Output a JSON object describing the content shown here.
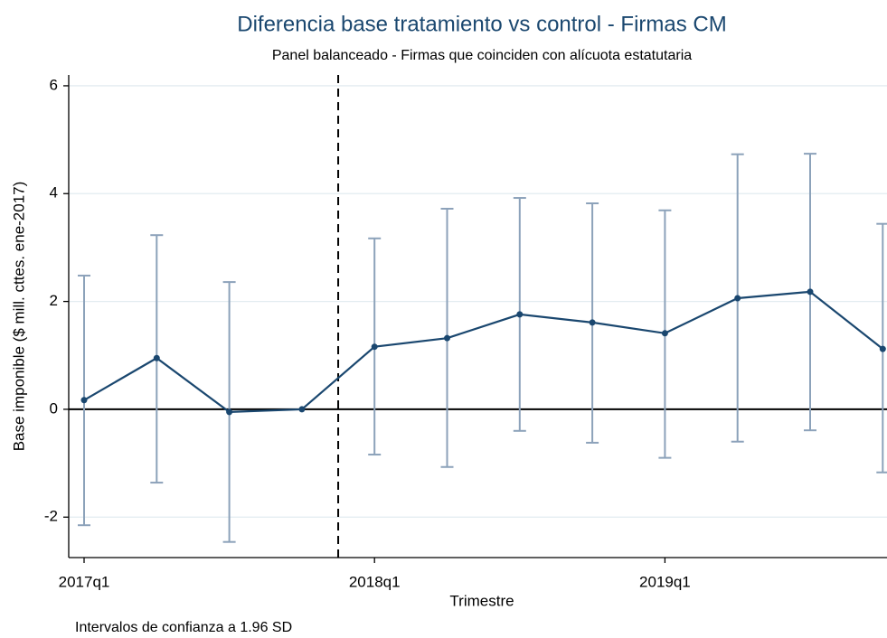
{
  "chart_data": {
    "type": "line",
    "title": "Diferencia base tratamiento vs control - Firmas CM",
    "subtitle": "Panel balanceado - Firmas que coinciden con alícuota estatutaria",
    "x_label": "Trimestre",
    "y_label": "Base imponible ($ mill. cttes. ene-2017)",
    "note": "Intervalos de confianza a 1.96 SD",
    "categories": [
      "2017q1",
      null,
      null,
      null,
      "2018q1",
      null,
      null,
      null,
      "2019q1",
      null,
      null,
      null
    ],
    "values": [
      0.17,
      0.95,
      -0.05,
      0,
      1.16,
      1.32,
      1.76,
      1.61,
      1.41,
      2.06,
      2.18,
      1.12
    ],
    "ci_low": [
      -2.15,
      -1.36,
      -2.46,
      null,
      -0.84,
      -1.07,
      -0.4,
      -0.62,
      -0.9,
      -0.6,
      -0.39,
      -1.17
    ],
    "ci_high": [
      2.48,
      3.23,
      2.36,
      null,
      3.17,
      3.72,
      3.92,
      3.82,
      3.69,
      4.73,
      4.74,
      3.44
    ],
    "color": "#1a476f",
    "ci_color": "#8ca2ba",
    "ylim": [
      -2.75,
      6.2
    ],
    "yticks": [
      -2,
      0,
      2,
      4,
      6
    ],
    "grid": true,
    "reference_lines": {
      "x": 3.5,
      "y": 0
    }
  }
}
